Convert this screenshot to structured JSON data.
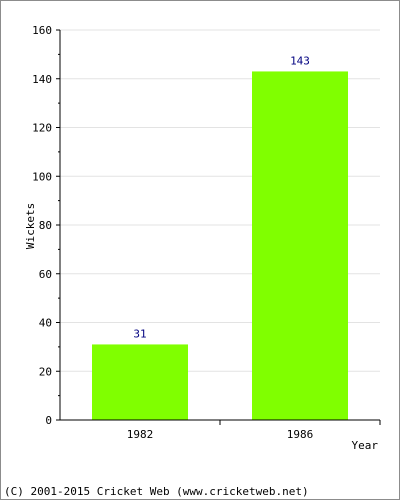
{
  "chart_data": {
    "type": "bar",
    "categories": [
      "1982",
      "1986"
    ],
    "values": [
      31,
      143
    ],
    "title": "",
    "xlabel": "Year",
    "ylabel": "Wickets",
    "ylim": [
      0,
      160
    ],
    "yticks": [
      0,
      20,
      40,
      60,
      80,
      100,
      120,
      140,
      160
    ],
    "grid": true,
    "bar_color": "#80ff00",
    "value_label_color": "#000080"
  },
  "footer": {
    "copyright": "(C) 2001-2015 Cricket Web (www.cricketweb.net)"
  }
}
